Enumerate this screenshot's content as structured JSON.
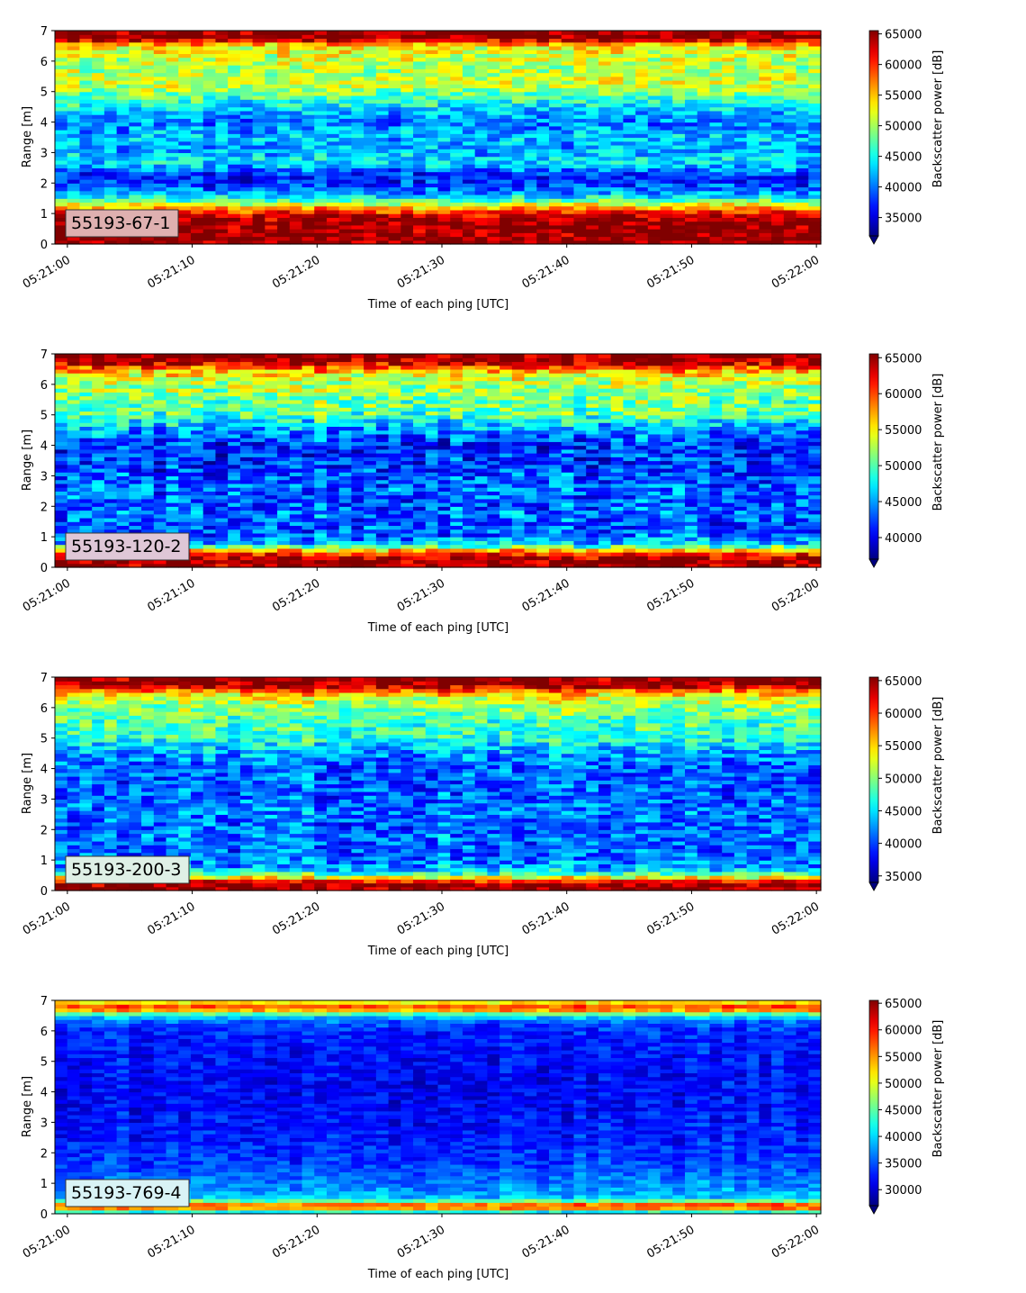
{
  "chart_data": [
    {
      "type": "heatmap",
      "label": "55193-67-1",
      "label_color": "#dfb0b0",
      "xlabel": "Time of each ping [UTC]",
      "ylabel": "Range [m]",
      "colorbar_label": "Backscatter power [dB]",
      "x_start": "05:21:00",
      "x_end": "05:22:00",
      "xticks": [
        "05:21:00",
        "05:21:10",
        "05:21:20",
        "05:21:30",
        "05:21:40",
        "05:21:50",
        "05:22:00"
      ],
      "ylim": [
        0,
        7
      ],
      "yticks": [
        0,
        1,
        2,
        3,
        4,
        5,
        6,
        7
      ],
      "clim": [
        32000,
        65535
      ],
      "cticks": [
        35000,
        40000,
        45000,
        50000,
        55000,
        60000,
        65000
      ],
      "colormap": "jet",
      "colorbar_extend": "min",
      "profile": [
        {
          "range": 0.0,
          "value": 65000
        },
        {
          "range": 0.25,
          "value": 65000
        },
        {
          "range": 0.5,
          "value": 65000
        },
        {
          "range": 0.75,
          "value": 65000
        },
        {
          "range": 1.0,
          "value": 62000
        },
        {
          "range": 1.25,
          "value": 54000
        },
        {
          "range": 1.5,
          "value": 45000
        },
        {
          "range": 1.75,
          "value": 40000
        },
        {
          "range": 2.0,
          "value": 38000
        },
        {
          "range": 2.25,
          "value": 37000
        },
        {
          "range": 2.5,
          "value": 41000
        },
        {
          "range": 2.75,
          "value": 44000
        },
        {
          "range": 3.0,
          "value": 42000
        },
        {
          "range": 3.25,
          "value": 41000
        },
        {
          "range": 3.5,
          "value": 43000
        },
        {
          "range": 3.75,
          "value": 41000
        },
        {
          "range": 4.0,
          "value": 40000
        },
        {
          "range": 4.25,
          "value": 41000
        },
        {
          "range": 4.5,
          "value": 44000
        },
        {
          "range": 4.75,
          "value": 46000
        },
        {
          "range": 5.0,
          "value": 49000
        },
        {
          "range": 5.25,
          "value": 51000
        },
        {
          "range": 5.5,
          "value": 51000
        },
        {
          "range": 5.75,
          "value": 50000
        },
        {
          "range": 6.0,
          "value": 51000
        },
        {
          "range": 6.25,
          "value": 52000
        },
        {
          "range": 6.5,
          "value": 53000
        },
        {
          "range": 6.75,
          "value": 65000
        },
        {
          "range": 7.0,
          "value": 65000
        }
      ]
    },
    {
      "type": "heatmap",
      "label": "55193-120-2",
      "label_color": "#dfc7d7",
      "xlabel": "Time of each ping [UTC]",
      "ylabel": "Range [m]",
      "colorbar_label": "Backscatter power [dB]",
      "x_start": "05:21:00",
      "x_end": "05:22:00",
      "xticks": [
        "05:21:00",
        "05:21:10",
        "05:21:20",
        "05:21:30",
        "05:21:40",
        "05:21:50",
        "05:22:00"
      ],
      "ylim": [
        0,
        7
      ],
      "yticks": [
        0,
        1,
        2,
        3,
        4,
        5,
        6,
        7
      ],
      "clim": [
        37000,
        65535
      ],
      "cticks": [
        40000,
        45000,
        50000,
        55000,
        60000,
        65000
      ],
      "colormap": "jet",
      "colorbar_extend": "min",
      "profile": [
        {
          "range": 0.0,
          "value": 65000
        },
        {
          "range": 0.25,
          "value": 65000
        },
        {
          "range": 0.5,
          "value": 60000
        },
        {
          "range": 0.75,
          "value": 47000
        },
        {
          "range": 1.0,
          "value": 44000
        },
        {
          "range": 1.25,
          "value": 43000
        },
        {
          "range": 1.5,
          "value": 43000
        },
        {
          "range": 1.75,
          "value": 44000
        },
        {
          "range": 2.0,
          "value": 43000
        },
        {
          "range": 2.25,
          "value": 43000
        },
        {
          "range": 2.5,
          "value": 44000
        },
        {
          "range": 2.75,
          "value": 43000
        },
        {
          "range": 3.0,
          "value": 43000
        },
        {
          "range": 3.25,
          "value": 42000
        },
        {
          "range": 3.5,
          "value": 42000
        },
        {
          "range": 3.75,
          "value": 42000
        },
        {
          "range": 4.0,
          "value": 42000
        },
        {
          "range": 4.25,
          "value": 43000
        },
        {
          "range": 4.5,
          "value": 45000
        },
        {
          "range": 4.75,
          "value": 47000
        },
        {
          "range": 5.0,
          "value": 50000
        },
        {
          "range": 5.25,
          "value": 51000
        },
        {
          "range": 5.5,
          "value": 51000
        },
        {
          "range": 5.75,
          "value": 52000
        },
        {
          "range": 6.0,
          "value": 53000
        },
        {
          "range": 6.25,
          "value": 54000
        },
        {
          "range": 6.5,
          "value": 58000
        },
        {
          "range": 6.75,
          "value": 65000
        },
        {
          "range": 7.0,
          "value": 65000
        }
      ]
    },
    {
      "type": "heatmap",
      "label": "55193-200-3",
      "label_color": "#dff0e6",
      "xlabel": "Time of each ping [UTC]",
      "ylabel": "Range [m]",
      "colorbar_label": "Backscatter power [dB]",
      "x_start": "05:21:00",
      "x_end": "05:22:00",
      "xticks": [
        "05:21:00",
        "05:21:10",
        "05:21:20",
        "05:21:30",
        "05:21:40",
        "05:21:50",
        "05:22:00"
      ],
      "ylim": [
        0,
        7
      ],
      "yticks": [
        0,
        1,
        2,
        3,
        4,
        5,
        6,
        7
      ],
      "clim": [
        34000,
        65535
      ],
      "cticks": [
        35000,
        40000,
        45000,
        50000,
        55000,
        60000,
        65000
      ],
      "colormap": "jet",
      "colorbar_extend": "min",
      "profile": [
        {
          "range": 0.0,
          "value": 65000
        },
        {
          "range": 0.25,
          "value": 65000
        },
        {
          "range": 0.5,
          "value": 50000
        },
        {
          "range": 0.75,
          "value": 43000
        },
        {
          "range": 1.0,
          "value": 42000
        },
        {
          "range": 1.25,
          "value": 41000
        },
        {
          "range": 1.5,
          "value": 41000
        },
        {
          "range": 1.75,
          "value": 42000
        },
        {
          "range": 2.0,
          "value": 41000
        },
        {
          "range": 2.25,
          "value": 41000
        },
        {
          "range": 2.5,
          "value": 42000
        },
        {
          "range": 2.75,
          "value": 42000
        },
        {
          "range": 3.0,
          "value": 41000
        },
        {
          "range": 3.25,
          "value": 41000
        },
        {
          "range": 3.5,
          "value": 41000
        },
        {
          "range": 3.75,
          "value": 41000
        },
        {
          "range": 4.0,
          "value": 41000
        },
        {
          "range": 4.25,
          "value": 42000
        },
        {
          "range": 4.5,
          "value": 43000
        },
        {
          "range": 4.75,
          "value": 45000
        },
        {
          "range": 5.0,
          "value": 47000
        },
        {
          "range": 5.25,
          "value": 48000
        },
        {
          "range": 5.5,
          "value": 48000
        },
        {
          "range": 5.75,
          "value": 49000
        },
        {
          "range": 6.0,
          "value": 50000
        },
        {
          "range": 6.25,
          "value": 52000
        },
        {
          "range": 6.5,
          "value": 56000
        },
        {
          "range": 6.75,
          "value": 65000
        },
        {
          "range": 7.0,
          "value": 65000
        }
      ]
    },
    {
      "type": "heatmap",
      "label": "55193-769-4",
      "label_color": "#d9f3f6",
      "xlabel": "Time of each ping [UTC]",
      "ylabel": "Range [m]",
      "colorbar_label": "Backscatter power [dB]",
      "x_start": "05:21:00",
      "x_end": "05:22:00",
      "xticks": [
        "05:21:00",
        "05:21:10",
        "05:21:20",
        "05:21:30",
        "05:21:40",
        "05:21:50",
        "05:22:00"
      ],
      "ylim": [
        0,
        7
      ],
      "yticks": [
        0,
        1,
        2,
        3,
        4,
        5,
        6,
        7
      ],
      "clim": [
        27000,
        65535
      ],
      "cticks": [
        30000,
        35000,
        40000,
        45000,
        50000,
        55000,
        60000,
        65000
      ],
      "colormap": "jet",
      "colorbar_extend": "min",
      "profile": [
        {
          "range": 0.0,
          "value": 36000
        },
        {
          "range": 0.25,
          "value": 62000
        },
        {
          "range": 0.5,
          "value": 40000
        },
        {
          "range": 0.75,
          "value": 38000
        },
        {
          "range": 1.0,
          "value": 37000
        },
        {
          "range": 1.25,
          "value": 36000
        },
        {
          "range": 1.5,
          "value": 35000
        },
        {
          "range": 1.75,
          "value": 34000
        },
        {
          "range": 2.0,
          "value": 34000
        },
        {
          "range": 2.25,
          "value": 33500
        },
        {
          "range": 2.5,
          "value": 33000
        },
        {
          "range": 2.75,
          "value": 33000
        },
        {
          "range": 3.0,
          "value": 32500
        },
        {
          "range": 3.25,
          "value": 32500
        },
        {
          "range": 3.5,
          "value": 32000
        },
        {
          "range": 3.75,
          "value": 32000
        },
        {
          "range": 4.0,
          "value": 32000
        },
        {
          "range": 4.25,
          "value": 32000
        },
        {
          "range": 4.5,
          "value": 32000
        },
        {
          "range": 4.75,
          "value": 32000
        },
        {
          "range": 5.0,
          "value": 32500
        },
        {
          "range": 5.25,
          "value": 32500
        },
        {
          "range": 5.5,
          "value": 33000
        },
        {
          "range": 5.75,
          "value": 33000
        },
        {
          "range": 6.0,
          "value": 33500
        },
        {
          "range": 6.25,
          "value": 35000
        },
        {
          "range": 6.5,
          "value": 40000
        },
        {
          "range": 6.75,
          "value": 60000
        },
        {
          "range": 7.0,
          "value": 50000
        }
      ]
    }
  ]
}
